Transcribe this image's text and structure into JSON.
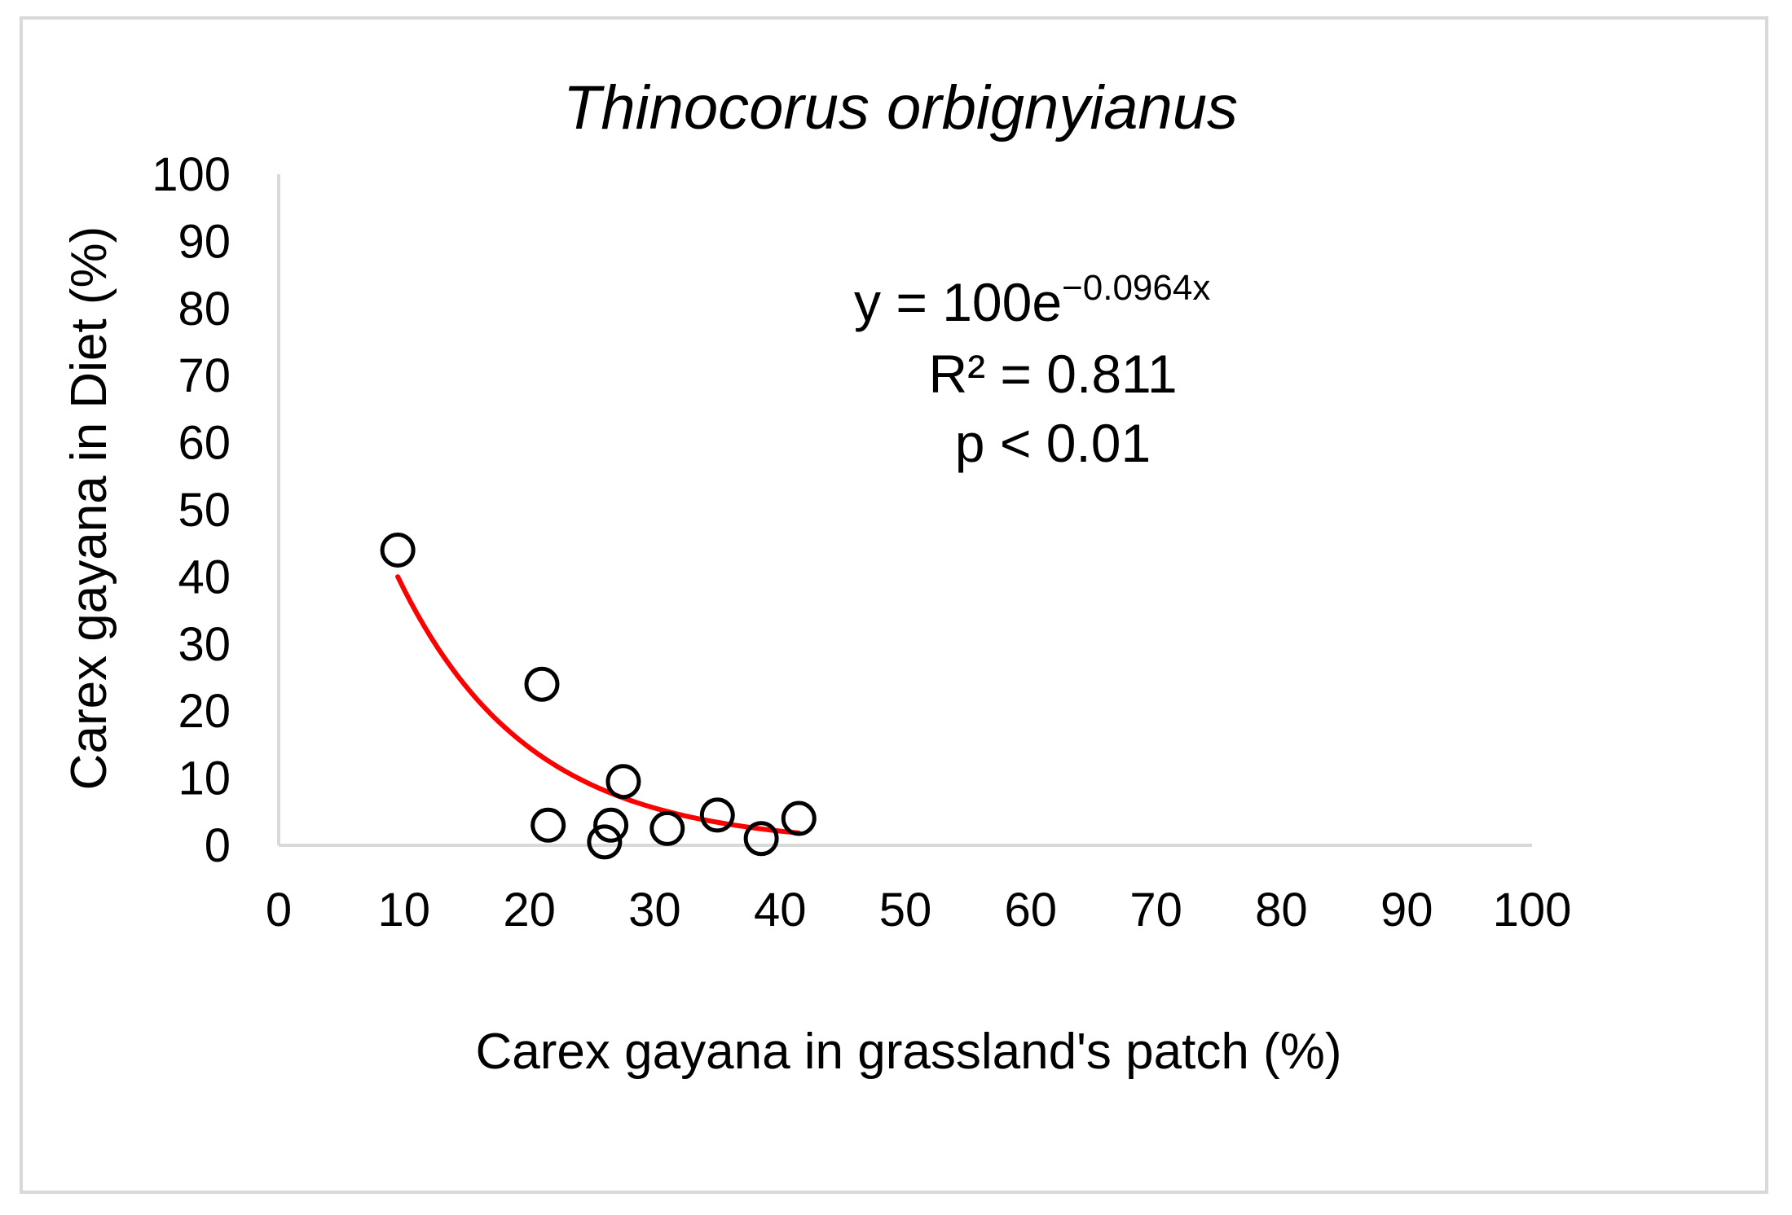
{
  "chart_data": {
    "type": "scatter",
    "title": "Thinocorus orbignyianus",
    "xlabel": "Carex gayana in  grassland's patch (%)",
    "ylabel": "Carex gayana in Diet (%)",
    "xlim": [
      0,
      100
    ],
    "ylim": [
      0,
      100
    ],
    "x_ticks": [
      "0",
      "10",
      "20",
      "30",
      "40",
      "50",
      "60",
      "70",
      "80",
      "90",
      "100"
    ],
    "y_ticks": [
      "0",
      "10",
      "20",
      "30",
      "40",
      "50",
      "60",
      "70",
      "80",
      "90",
      "100"
    ],
    "grid": false,
    "points": [
      {
        "x": 9.5,
        "y": 44
      },
      {
        "x": 21,
        "y": 24
      },
      {
        "x": 21.5,
        "y": 3
      },
      {
        "x": 26,
        "y": 0.5
      },
      {
        "x": 26.5,
        "y": 3
      },
      {
        "x": 27.5,
        "y": 9.5
      },
      {
        "x": 31,
        "y": 2.5
      },
      {
        "x": 35,
        "y": 4.5
      },
      {
        "x": 38.5,
        "y": 1
      },
      {
        "x": 41.5,
        "y": 4
      }
    ],
    "trendline": {
      "type": "exponential",
      "a": 100,
      "b": -0.0964,
      "x_range": [
        9.5,
        41.5
      ],
      "color": "#ff0000"
    },
    "annotation": {
      "equation_base": "y = 100e",
      "equation_exponent": "−0.0964x",
      "r_squared": "R² = 0.811",
      "p_value": "p < 0.01"
    },
    "colors": {
      "axis": "#d9d9d9",
      "marker": "#000000",
      "trendline": "#ff0000",
      "frame": "#d9d9d9"
    }
  }
}
